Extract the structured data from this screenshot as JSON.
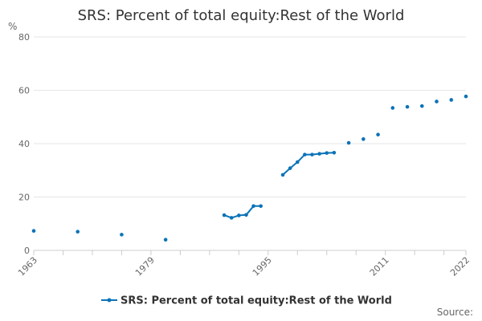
{
  "chart_data": {
    "type": "line",
    "title": "SRS: Percent of total equity:Rest of the World",
    "ylabel_unit": "%",
    "xlabel": "",
    "ylim": [
      0,
      80
    ],
    "y_ticks": [
      0,
      20,
      40,
      60,
      80
    ],
    "xlim": [
      1963,
      2022
    ],
    "x_tick_labels": [
      "1963",
      "1979",
      "1995",
      "2011",
      "2022"
    ],
    "x_tick_values": [
      1963,
      1979,
      1995,
      2011,
      2022
    ],
    "x_minor_ticks": [
      1963,
      1967,
      1971,
      1975,
      1979,
      1983,
      1987,
      1991,
      1995,
      1999,
      2003,
      2007,
      2011,
      2015,
      2019,
      2022
    ],
    "grid": true,
    "legend_position": "bottom",
    "series": [
      {
        "name": "SRS: Percent of total equity:Rest of the World",
        "color": "#0b73b8",
        "x": [
          1963,
          1969,
          1975,
          1981,
          1989,
          1990,
          1991,
          1992,
          1993,
          1994,
          1997,
          1998,
          1999,
          2000,
          2001,
          2002,
          2003,
          2004,
          2006,
          2008,
          2010,
          2012,
          2014,
          2016,
          2018,
          2020,
          2022
        ],
        "y": [
          7.3,
          7.0,
          5.9,
          4.0,
          13.2,
          12.2,
          13.1,
          13.3,
          16.6,
          16.6,
          28.3,
          30.8,
          33.1,
          35.9,
          35.9,
          36.2,
          36.5,
          36.6,
          40.3,
          41.7,
          43.4,
          53.4,
          53.8,
          54.1,
          55.8,
          56.4,
          57.7
        ],
        "segments_connected": [
          [
            1989,
            1994
          ],
          [
            1997,
            2004
          ]
        ]
      }
    ]
  },
  "source_label": "Source:"
}
